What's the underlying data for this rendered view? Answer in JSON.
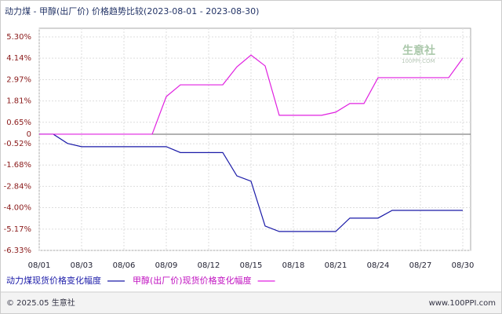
{
  "chart_data": {
    "type": "line",
    "title": "动力煤 - 甲醇(出厂价) 价格趋势比较(2023-08-01 - 2023-08-30)",
    "categories": [
      "08/01",
      null,
      null,
      "08/03",
      null,
      null,
      "08/06",
      null,
      null,
      "08/09",
      null,
      null,
      "08/12",
      null,
      null,
      "08/15",
      null,
      null,
      "08/18",
      null,
      null,
      "08/21",
      null,
      null,
      "08/24",
      null,
      null,
      "08/27",
      null,
      null,
      "08/30"
    ],
    "series": [
      {
        "name": "动力煤现货价格变化幅度",
        "color": "#1a1aa8",
        "values": [
          0,
          0,
          -0.5,
          -0.68,
          -0.68,
          -0.68,
          -0.68,
          -0.68,
          -0.68,
          -0.68,
          -1.0,
          -1.0,
          -1.0,
          -1.0,
          -2.27,
          -2.56,
          -5.0,
          -5.3,
          -5.3,
          -5.3,
          -5.3,
          -5.3,
          -4.57,
          -4.57,
          -4.57,
          -4.15,
          -4.15,
          -4.15,
          -4.15,
          -4.15,
          -4.15
        ]
      },
      {
        "name": "甲醇(出厂价)现货价格变化幅度",
        "color": "#e020e0",
        "values": [
          0,
          0,
          0,
          0,
          0,
          0,
          0,
          0,
          0,
          2.05,
          2.69,
          2.69,
          2.69,
          2.69,
          3.67,
          4.31,
          3.72,
          1.03,
          1.03,
          1.03,
          1.03,
          1.2,
          1.67,
          1.67,
          3.08,
          3.08,
          3.08,
          3.08,
          3.08,
          3.08,
          4.14
        ]
      }
    ],
    "ylim": [
      -6.33,
      5.3
    ],
    "yticks": [
      {
        "value": 5.3,
        "label": "5.30%"
      },
      {
        "value": 4.14,
        "label": "4.14%"
      },
      {
        "value": 2.97,
        "label": "2.97%"
      },
      {
        "value": 1.81,
        "label": "1.81%"
      },
      {
        "value": 0.65,
        "label": "0.65%"
      },
      0,
      {
        "value": -0.52,
        "label": "-0.52%"
      },
      {
        "value": -1.68,
        "label": "-1.68%"
      },
      {
        "value": -2.84,
        "label": "-2.84%"
      },
      {
        "value": -4.0,
        "label": "-4.00%"
      },
      {
        "value": -5.17,
        "label": "-5.17%"
      },
      {
        "value": -6.33,
        "label": "-6.33%"
      }
    ],
    "grid": true,
    "watermark": {
      "name": "生意社",
      "site": "100PPI.COM"
    },
    "footer": {
      "left": "© 2025.05 生意社",
      "right": "www.100PPI.com"
    }
  }
}
